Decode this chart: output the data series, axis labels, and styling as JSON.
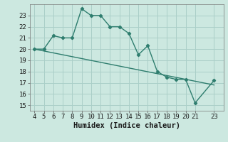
{
  "x_data": [
    4,
    5,
    6,
    7,
    8,
    9,
    10,
    11,
    12,
    13,
    14,
    15,
    16,
    17,
    18,
    19,
    20,
    21,
    23
  ],
  "y_main": [
    20,
    20,
    21.2,
    21,
    21,
    23.6,
    23,
    23,
    22,
    22,
    21.4,
    19.5,
    20.3,
    18,
    17.5,
    17.3,
    17.3,
    15.2,
    17.2
  ],
  "y_trend_x": [
    4,
    23
  ],
  "y_trend_y": [
    20.0,
    16.8
  ],
  "line_color": "#2e7d6e",
  "bg_color": "#cce8e0",
  "grid_color": "#aacfc8",
  "xlabel": "Humidex (Indice chaleur)",
  "xlim": [
    3.5,
    24.0
  ],
  "ylim": [
    14.5,
    24.0
  ],
  "yticks": [
    15,
    16,
    17,
    18,
    19,
    20,
    21,
    22,
    23
  ],
  "xticks": [
    4,
    5,
    6,
    7,
    8,
    9,
    10,
    11,
    12,
    13,
    14,
    15,
    16,
    17,
    18,
    19,
    20,
    21,
    23
  ],
  "xlabel_fontsize": 7.5,
  "tick_fontsize": 6.5
}
